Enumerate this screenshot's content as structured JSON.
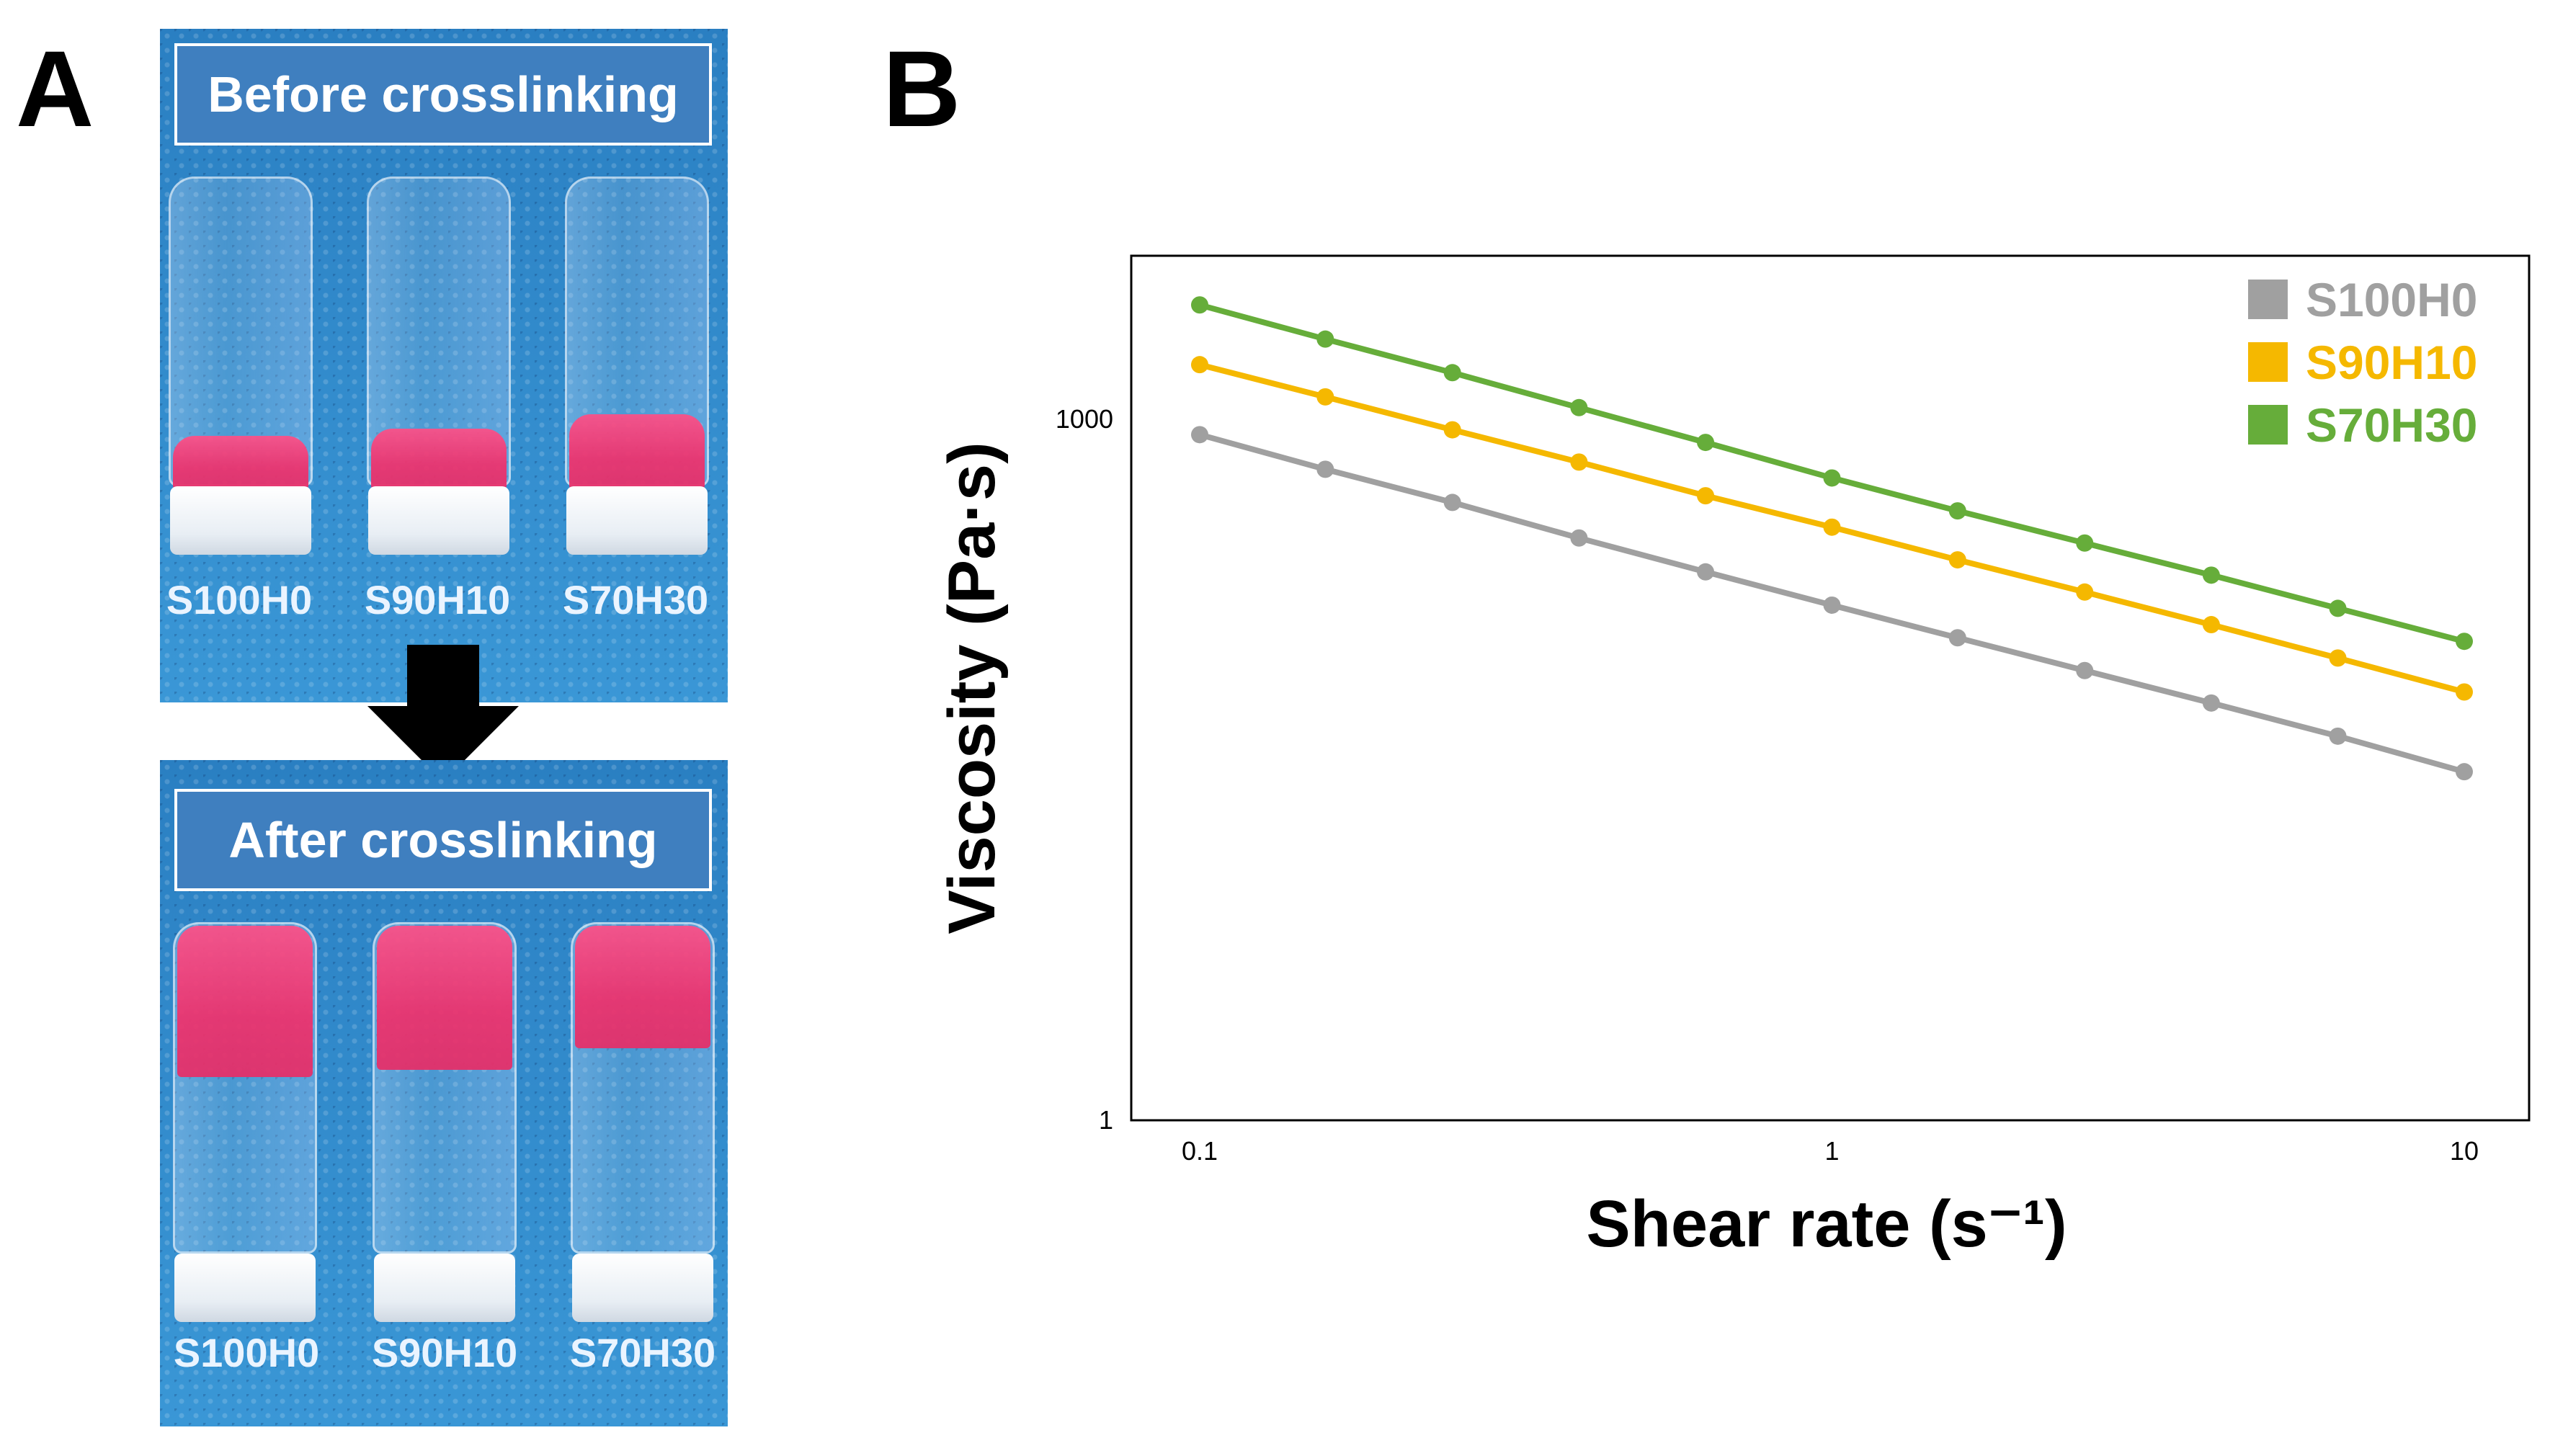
{
  "panels": {
    "a_label": "A",
    "b_label": "B"
  },
  "photos": {
    "before": {
      "title": "Before crosslinking",
      "labels": [
        "S100H0",
        "S90H10",
        "S70H30"
      ]
    },
    "after": {
      "title": "After crosslinking",
      "labels": [
        "S100H0",
        "S90H10",
        "S70H30"
      ]
    }
  },
  "chart_data": {
    "type": "line",
    "title": "",
    "xlabel": "Shear rate (s⁻¹)",
    "ylabel": "Viscosity (Pa·s)",
    "xscale": "log",
    "yscale": "log",
    "xlim": [
      0.1,
      10
    ],
    "ylim": [
      1,
      5000
    ],
    "xticks": [
      0.1,
      1,
      10
    ],
    "xtick_labels": [
      "0.1",
      "1",
      "10"
    ],
    "yticks": [
      1,
      1000
    ],
    "ytick_labels": [
      "1",
      "1000"
    ],
    "grid": false,
    "legend_position": "top-right",
    "x": [
      0.1,
      0.158,
      0.251,
      0.398,
      0.631,
      1.0,
      1.58,
      2.51,
      3.98,
      6.31,
      10.0
    ],
    "series": [
      {
        "name": "S100H0",
        "color": "#a0a0a0",
        "values": [
          858,
          610,
          440,
          310,
          222,
          160,
          116,
          84,
          61,
          44,
          31
        ]
      },
      {
        "name": "S90H10",
        "color": "#f5b800",
        "values": [
          1710,
          1245,
          900,
          655,
          470,
          345,
          250,
          182,
          132,
          95,
          68
        ]
      },
      {
        "name": "S70H30",
        "color": "#66ad3a",
        "values": [
          3080,
          2200,
          1580,
          1120,
          795,
          560,
          405,
          295,
          215,
          155,
          112
        ]
      }
    ]
  }
}
